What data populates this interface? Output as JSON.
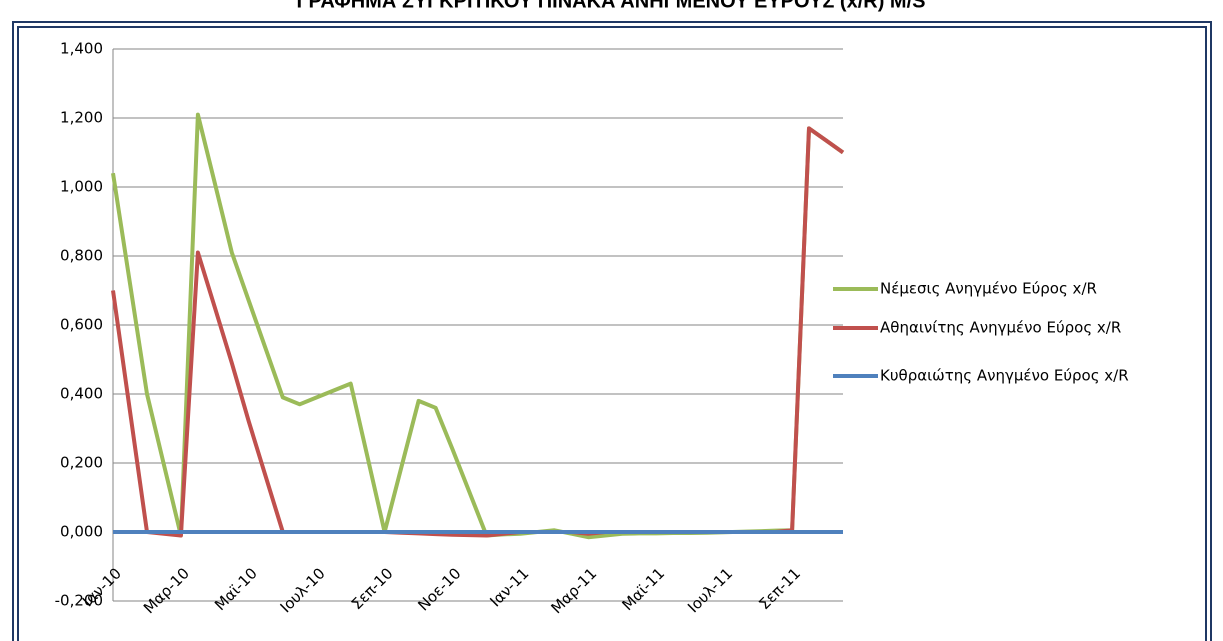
{
  "chart_data": {
    "type": "line",
    "title": "ΓΡΑΦΗΜΑ ΣΥΓΚΡΙΤΙΚΟΥ ΠΙΝΑΚΑ ΑΝΗΓΜΕΝΟΥ ΕΥΡΟΥΣ (x/R) M/S",
    "categories": [
      "Ιαν-10",
      null,
      null,
      null,
      "Μαρ-10",
      null,
      null,
      null,
      "Μαϊ-10",
      null,
      null,
      null,
      "Ιουλ-10",
      null,
      null,
      null,
      "Σεπ-10",
      null,
      null,
      null,
      "Νοε-10",
      null,
      null,
      null,
      "Ιαν-11",
      null,
      null,
      null,
      "Μαρ-11",
      null,
      null,
      null,
      "Μαϊ-11",
      null,
      null,
      null,
      "Ιουλ-11",
      null,
      null,
      null,
      "Σεπ-11",
      null,
      null,
      null
    ],
    "series": [
      {
        "name": "Νέμεσις Ανηγμένο Εύρος x/R",
        "color": "#9bbb59",
        "values": [
          1.04,
          0.72,
          0.4,
          0.195,
          -0.01,
          1.21,
          1.01,
          0.81,
          0.67,
          0.53,
          0.39,
          0.37,
          0.39,
          0.41,
          0.43,
          0.215,
          0.0,
          0.19,
          0.38,
          0.36,
          0.24,
          0.115,
          -0.01,
          -0.007,
          -0.005,
          0.0,
          0.005,
          -0.005,
          -0.015,
          -0.01,
          -0.005,
          -0.004,
          -0.004,
          -0.003,
          -0.003,
          -0.002,
          -0.001,
          0.001,
          0.002,
          0.004,
          0.005,
          1.17,
          1.135,
          1.1
        ]
      },
      {
        "name": "Αθηαινίτης  Ανηγμένο Εύρος x/R",
        "color": "#c0504d",
        "values": [
          0.7,
          0.35,
          0.0,
          -0.005,
          -0.01,
          0.81,
          0.65,
          0.49,
          0.32,
          0.16,
          0.0,
          0.0,
          0.0,
          0.0,
          0.0,
          0.0,
          0.0,
          -0.002,
          -0.004,
          -0.006,
          -0.008,
          -0.009,
          -0.01,
          -0.005,
          0.0,
          0.0,
          0.0,
          0.0,
          -0.005,
          0.0,
          0.0,
          0.0,
          0.0,
          0.0,
          0.0,
          0.0,
          0.0,
          0.0,
          0.0,
          0.0,
          0.005,
          1.17,
          1.135,
          1.1
        ]
      },
      {
        "name": "Κυθραιώτης Ανηγμένο Εύρος x/R",
        "color": "#4f81bd",
        "values": [
          0,
          0,
          0,
          0,
          0,
          0,
          0,
          0,
          0,
          0,
          0,
          0,
          0,
          0,
          0,
          0,
          0,
          0,
          0,
          0,
          0,
          0,
          0,
          0,
          0,
          0,
          0,
          0,
          0,
          0,
          0,
          0,
          0,
          0,
          0,
          0,
          0,
          0,
          0,
          0,
          0,
          0,
          0,
          0
        ]
      }
    ],
    "ylim": [
      -0.2,
      1.4
    ],
    "yticks": [
      {
        "value": -0.2,
        "label": "-0,200"
      },
      {
        "value": 0,
        "label": "0,000"
      },
      {
        "value": 0.2,
        "label": "0,200"
      },
      {
        "value": 0.4,
        "label": "0,400"
      },
      {
        "value": 0.6,
        "label": "0,600"
      },
      {
        "value": 0.8,
        "label": "0,800"
      },
      {
        "value": 1.0,
        "label": "1,000"
      },
      {
        "value": 1.2,
        "label": "1,200"
      },
      {
        "value": 1.4,
        "label": "1,400"
      }
    ],
    "grid": true,
    "legend": "right"
  }
}
